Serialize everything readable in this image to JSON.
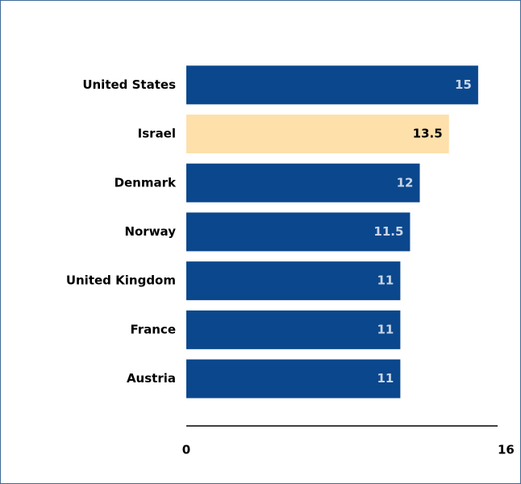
{
  "chart_data": {
    "type": "bar",
    "orientation": "horizontal",
    "categories": [
      "United States",
      "Israel",
      "Denmark",
      "Norway",
      "United Kingdom",
      "France",
      "Austria"
    ],
    "values": [
      15,
      13.5,
      12,
      11.5,
      11,
      11,
      11
    ],
    "colors": [
      "#0b478c",
      "#fde0aa",
      "#0b478c",
      "#0b478c",
      "#0b478c",
      "#0b478c",
      "#0b478c"
    ],
    "xlim": [
      0,
      16
    ],
    "xticks": [
      0,
      16
    ],
    "grid": false
  }
}
